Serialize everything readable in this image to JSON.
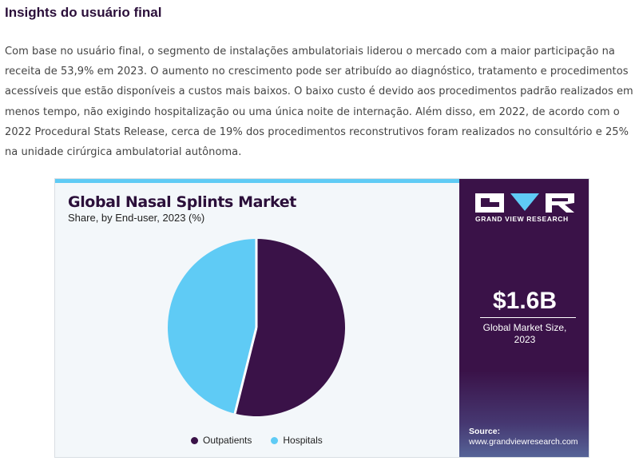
{
  "section": {
    "title": "Insights do usuário final",
    "paragraph": "Com base no usuário final, o segmento de instalações ambulatoriais liderou o mercado com a maior participação na receita de 53,9% em 2023. O aumento no crescimento pode ser atribuído ao diagnóstico, tratamento e procedimentos acessíveis que estão disponíveis a custos mais baixos. O baixo custo é devido aos procedimentos padrão realizados em menos tempo, não exigindo hospitalização ou uma única noite de internação. Além disso, em 2022, de acordo com o 2022 Procedural Stats Release, cerca de 19% dos procedimentos reconstrutivos foram realizados no consultório e 25% na unidade cirúrgica ambulatorial autônoma."
  },
  "chart_data": {
    "type": "pie",
    "title": "Global Nasal Splints Market",
    "subtitle": "Share, by End-user, 2023 (%)",
    "categories": [
      "Outpatients",
      "Hospitals"
    ],
    "values": [
      53.9,
      46.1
    ],
    "colors": [
      "#3a1248",
      "#5fcbf5"
    ],
    "legend_position": "bottom"
  },
  "brand": {
    "name": "GRAND VIEW RESEARCH",
    "colors": {
      "panel": "#3a1248",
      "accent": "#5fcbf5"
    }
  },
  "highlight": {
    "value": "$1.6B",
    "label_line1": "Global Market Size,",
    "label_line2": "2023"
  },
  "source": {
    "label": "Source:",
    "url": "www.grandviewresearch.com"
  }
}
